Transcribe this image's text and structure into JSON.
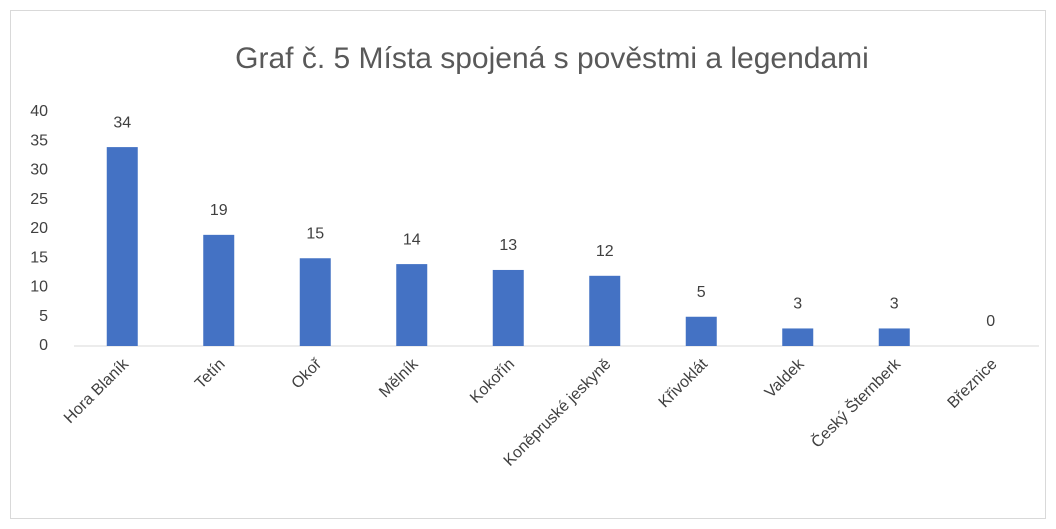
{
  "chart_data": {
    "type": "bar",
    "title": "Graf č. 5 Místa spojená s pověstmi a legendami",
    "categories": [
      "Hora Blaník",
      "Tetín",
      "Okoř",
      "Mělník",
      "Kokořín",
      "Koněpruské jeskyně",
      "Křivoklát",
      "Valdek",
      "Český Šternberk",
      "Březnice"
    ],
    "values": [
      34,
      19,
      15,
      14,
      13,
      12,
      5,
      3,
      3,
      0
    ],
    "color": "#4472c4",
    "ylim": [
      0,
      40
    ],
    "yticks": [
      0,
      5,
      10,
      15,
      20,
      25,
      30,
      35,
      40
    ],
    "grid": false
  }
}
